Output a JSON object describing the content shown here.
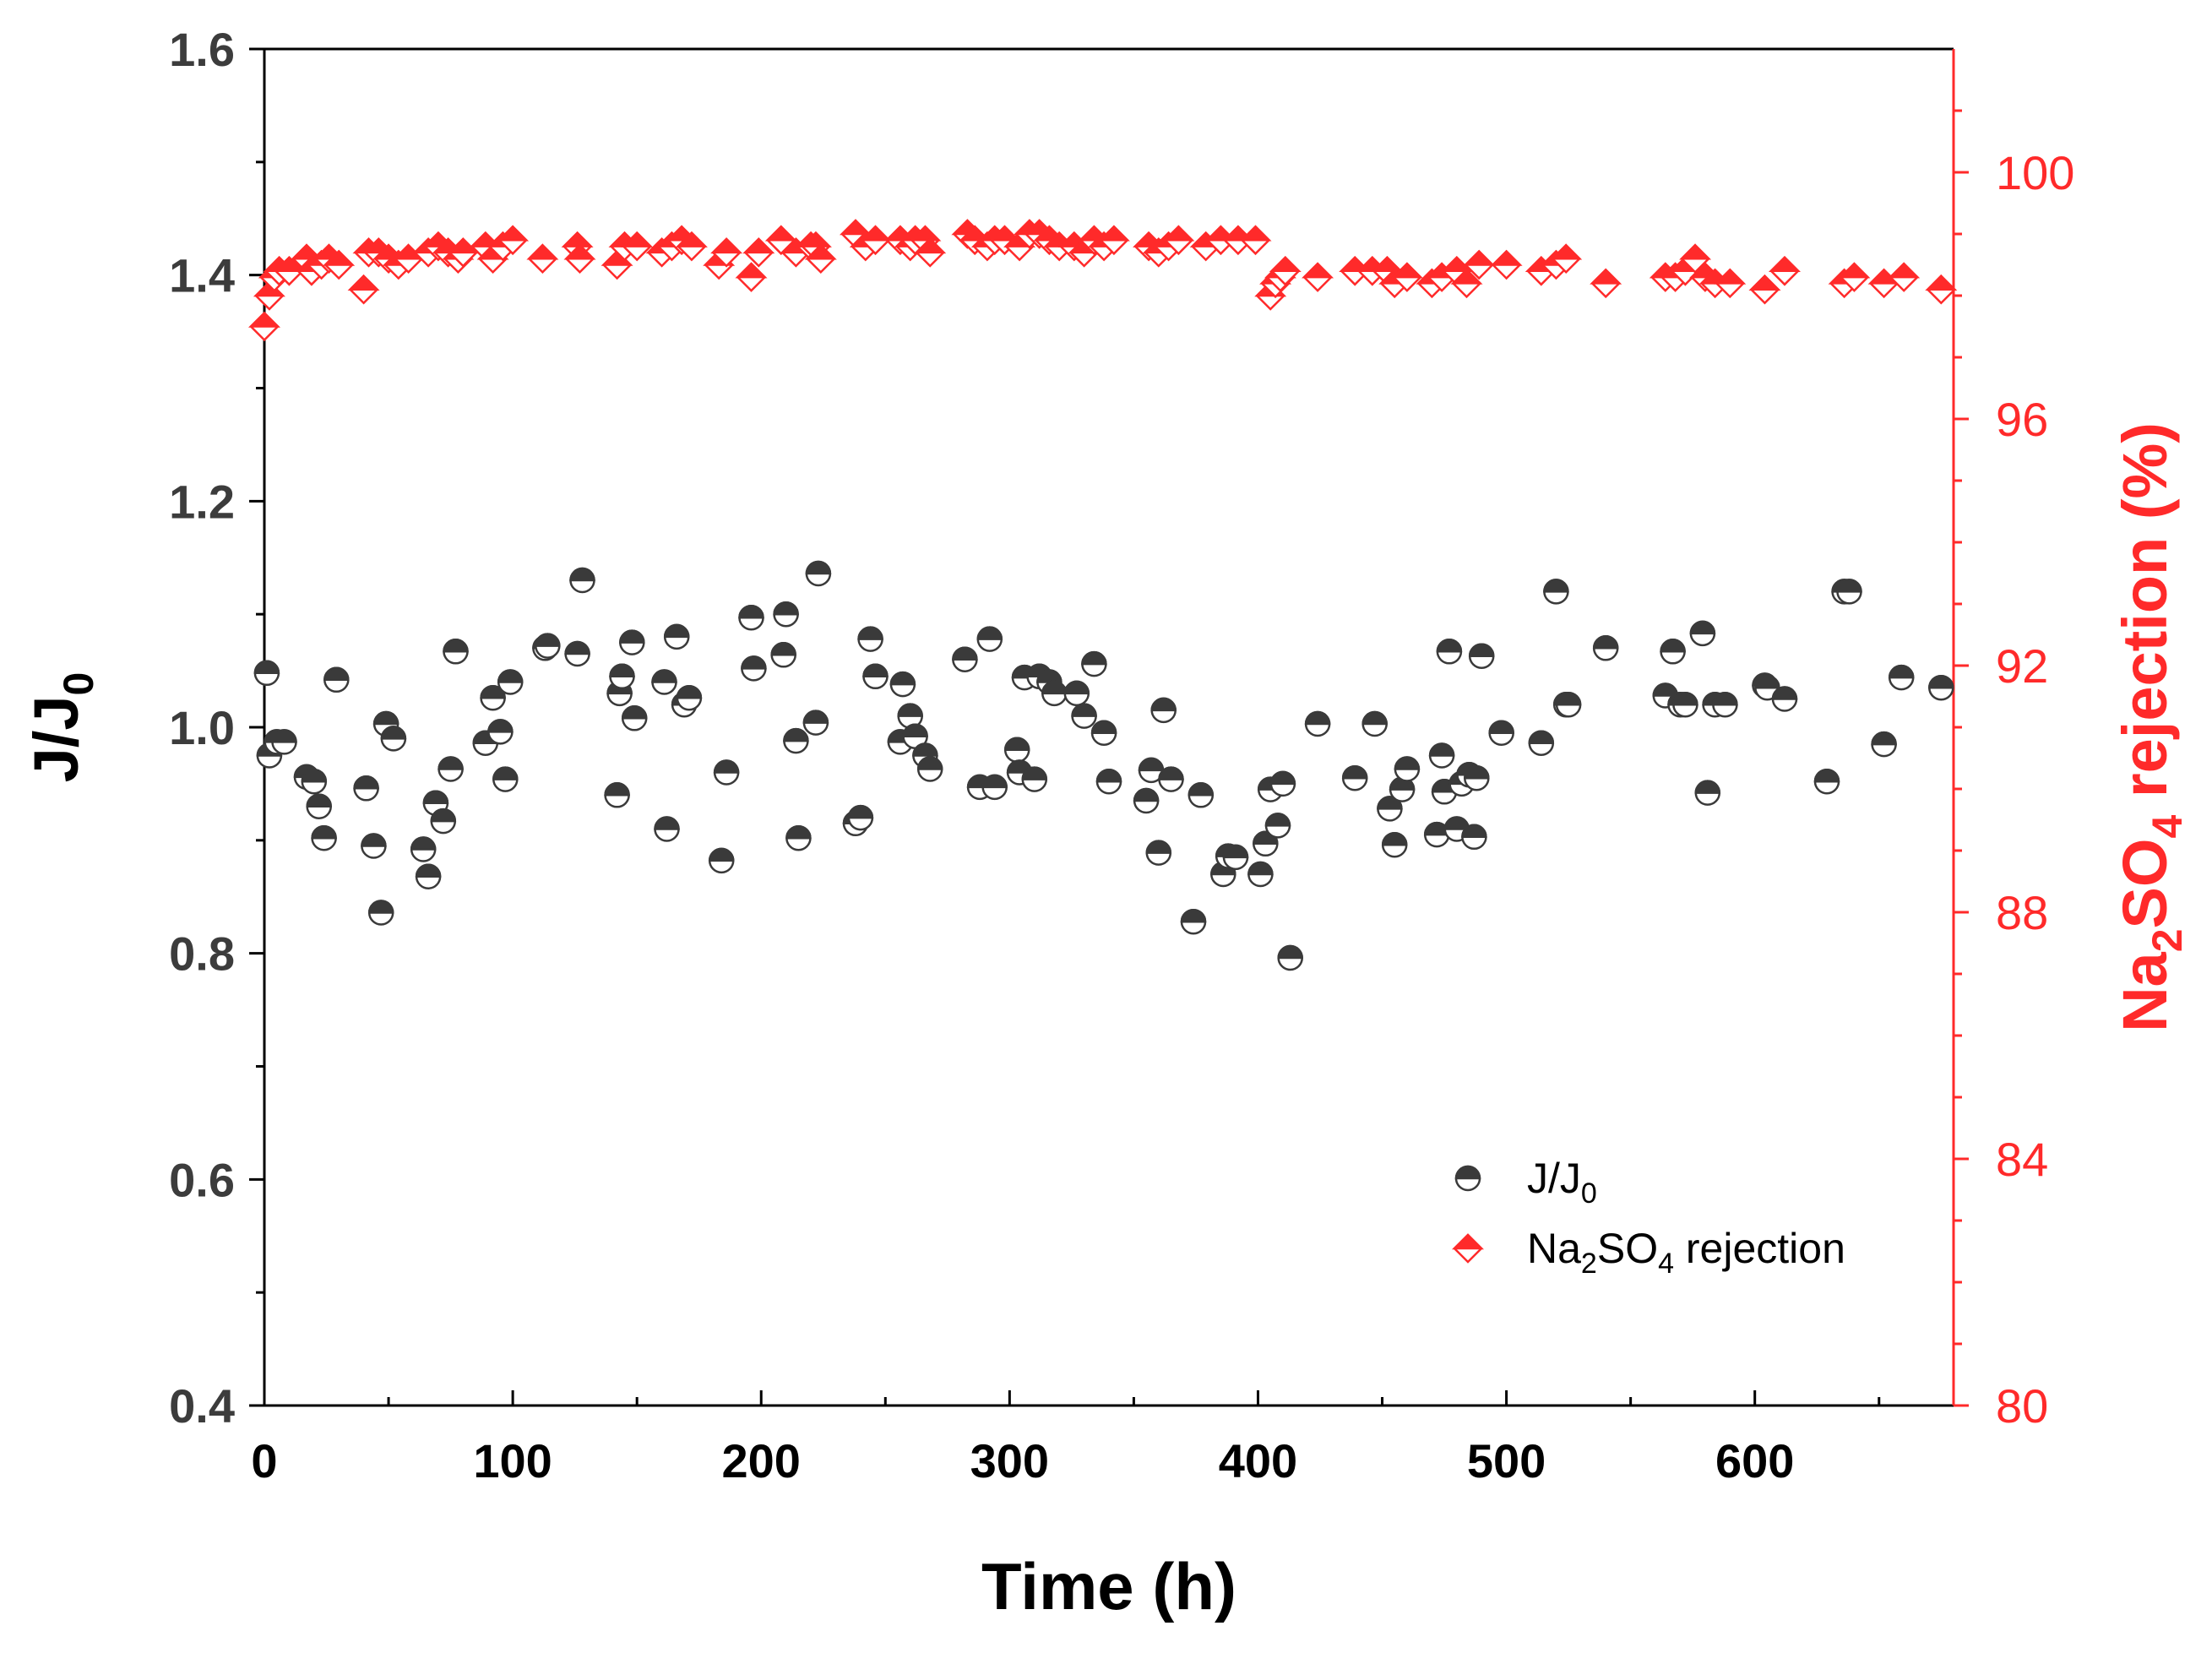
{
  "chart_data": {
    "type": "scatter",
    "title": "",
    "xlabel": "Time (h)",
    "ylabel_left": {
      "base": "J/J",
      "sub": "0"
    },
    "ylabel_right": {
      "pre": "Na",
      "sub1": "2",
      "mid": "SO",
      "sub2": "4",
      "post": " rejection (%)"
    },
    "xlim": [
      0,
      680
    ],
    "ylim_left": [
      0.4,
      1.6
    ],
    "ylim_right": [
      80,
      102
    ],
    "x_ticks": [
      "0",
      "100",
      "200",
      "300",
      "400",
      "500",
      "600"
    ],
    "y_left_ticks": [
      "0.4",
      "0.6",
      "0.8",
      "1.0",
      "1.2",
      "1.4",
      "1.6"
    ],
    "y_right_ticks": [
      "80",
      "84",
      "88",
      "92",
      "96",
      "100"
    ],
    "colors": {
      "flux": "#3a3a3a",
      "rejection": "#ff2a2a",
      "axis": "#000000",
      "right_axis": "#ff2a2a"
    },
    "legend": {
      "position": "lower-right",
      "flux": {
        "base": "J/J",
        "sub": "0"
      },
      "rejection": {
        "pre": "Na",
        "sub1": "2",
        "mid": "SO",
        "sub2": "4",
        "post": " rejection"
      }
    },
    "series": [
      {
        "name": "J/J0",
        "axis": "left",
        "marker": "half-filled-circle",
        "x": [
          1,
          2,
          5,
          8,
          17,
          20,
          22,
          24,
          29,
          41,
          44,
          47,
          49,
          52,
          64,
          66,
          69,
          72,
          75,
          77,
          89,
          92,
          95,
          97,
          99,
          113,
          114,
          126,
          128,
          142,
          143,
          144,
          148,
          149,
          161,
          162,
          166,
          169,
          171,
          184,
          186,
          196,
          197,
          209,
          210,
          214,
          215,
          222,
          223,
          238,
          240,
          244,
          246,
          256,
          257,
          260,
          262,
          266,
          268,
          282,
          288,
          292,
          294,
          303,
          304,
          306,
          310,
          312,
          316,
          318,
          327,
          330,
          334,
          338,
          340,
          355,
          357,
          360,
          362,
          365,
          374,
          377,
          386,
          388,
          391,
          401,
          403,
          405,
          408,
          410,
          413,
          424,
          439,
          447,
          453,
          455,
          458,
          460,
          472,
          474,
          475,
          477,
          480,
          482,
          485,
          487,
          488,
          490,
          498,
          514,
          520,
          524,
          525,
          540,
          564,
          567,
          570,
          572,
          579,
          581,
          584,
          588,
          604,
          605,
          612,
          629,
          636,
          638,
          652,
          659,
          675
        ],
        "y": [
          1.048,
          0.975,
          0.987,
          0.987,
          0.956,
          0.952,
          0.93,
          0.902,
          1.042,
          0.946,
          0.895,
          0.836,
          1.003,
          0.99,
          0.892,
          0.868,
          0.933,
          0.917,
          0.963,
          1.067,
          0.986,
          1.026,
          0.996,
          0.954,
          1.04,
          1.07,
          1.072,
          1.065,
          1.13,
          0.94,
          1.03,
          1.045,
          1.075,
          1.008,
          1.04,
          0.91,
          1.08,
          1.02,
          1.026,
          0.882,
          0.96,
          1.097,
          1.052,
          1.064,
          1.1,
          0.988,
          0.902,
          1.004,
          1.136,
          0.915,
          0.92,
          1.078,
          1.045,
          0.987,
          1.038,
          1.01,
          0.992,
          0.975,
          0.963,
          1.06,
          0.947,
          1.078,
          0.947,
          0.98,
          0.96,
          1.044,
          0.954,
          1.045,
          1.04,
          1.03,
          1.03,
          1.01,
          1.056,
          0.995,
          0.952,
          0.935,
          0.962,
          0.889,
          1.015,
          0.954,
          0.828,
          0.94,
          0.87,
          0.886,
          0.885,
          0.87,
          0.897,
          0.945,
          0.913,
          0.95,
          0.796,
          1.003,
          0.955,
          1.003,
          0.928,
          0.896,
          0.945,
          0.963,
          0.905,
          0.975,
          0.943,
          1.067,
          0.91,
          0.95,
          0.958,
          0.903,
          0.955,
          1.063,
          0.995,
          0.986,
          1.12,
          1.02,
          1.02,
          1.07,
          1.028,
          1.067,
          1.02,
          1.02,
          1.083,
          0.942,
          1.02,
          1.02,
          1.037,
          1.035,
          1.025,
          0.952,
          1.12,
          1.12,
          0.985,
          1.044,
          1.035
        ]
      },
      {
        "name": "Na2SO4 rejection",
        "axis": "right",
        "marker": "half-filled-diamond",
        "x": [
          0,
          2,
          4,
          6,
          10,
          17,
          19,
          23,
          26,
          30,
          40,
          42,
          46,
          50,
          54,
          58,
          66,
          70,
          74,
          78,
          80,
          89,
          92,
          96,
          100,
          112,
          126,
          127,
          142,
          145,
          150,
          160,
          164,
          168,
          172,
          183,
          186,
          196,
          199,
          208,
          214,
          220,
          222,
          224,
          238,
          242,
          246,
          256,
          260,
          262,
          266,
          268,
          283,
          286,
          291,
          294,
          298,
          304,
          308,
          312,
          316,
          320,
          326,
          330,
          334,
          338,
          342,
          356,
          360,
          364,
          368,
          379,
          385,
          392,
          399,
          405,
          407,
          409,
          411,
          424,
          439,
          446,
          452,
          455,
          460,
          470,
          474,
          480,
          484,
          489,
          500,
          514,
          520,
          524,
          540,
          564,
          568,
          572,
          576,
          580,
          584,
          590,
          604,
          612,
          636,
          640,
          652,
          660,
          675
        ],
        "y": [
          97.5,
          98.0,
          98.3,
          98.4,
          98.4,
          98.6,
          98.4,
          98.5,
          98.6,
          98.5,
          98.1,
          98.7,
          98.7,
          98.6,
          98.5,
          98.6,
          98.7,
          98.8,
          98.7,
          98.6,
          98.7,
          98.8,
          98.6,
          98.8,
          98.9,
          98.6,
          98.8,
          98.6,
          98.5,
          98.8,
          98.8,
          98.7,
          98.8,
          98.9,
          98.8,
          98.5,
          98.7,
          98.3,
          98.7,
          98.9,
          98.7,
          98.8,
          98.8,
          98.6,
          99.0,
          98.8,
          98.9,
          98.9,
          98.8,
          98.9,
          98.9,
          98.7,
          99.0,
          98.9,
          98.8,
          98.9,
          98.9,
          98.8,
          99.0,
          99.0,
          98.9,
          98.8,
          98.8,
          98.7,
          98.9,
          98.8,
          98.9,
          98.8,
          98.7,
          98.8,
          98.9,
          98.8,
          98.9,
          98.9,
          98.9,
          98.0,
          98.2,
          98.3,
          98.4,
          98.3,
          98.4,
          98.4,
          98.4,
          98.2,
          98.3,
          98.2,
          98.3,
          98.4,
          98.2,
          98.5,
          98.5,
          98.4,
          98.5,
          98.6,
          98.2,
          98.3,
          98.3,
          98.4,
          98.6,
          98.3,
          98.2,
          98.2,
          98.1,
          98.4,
          98.2,
          98.3,
          98.2,
          98.3,
          98.1
        ]
      }
    ]
  }
}
